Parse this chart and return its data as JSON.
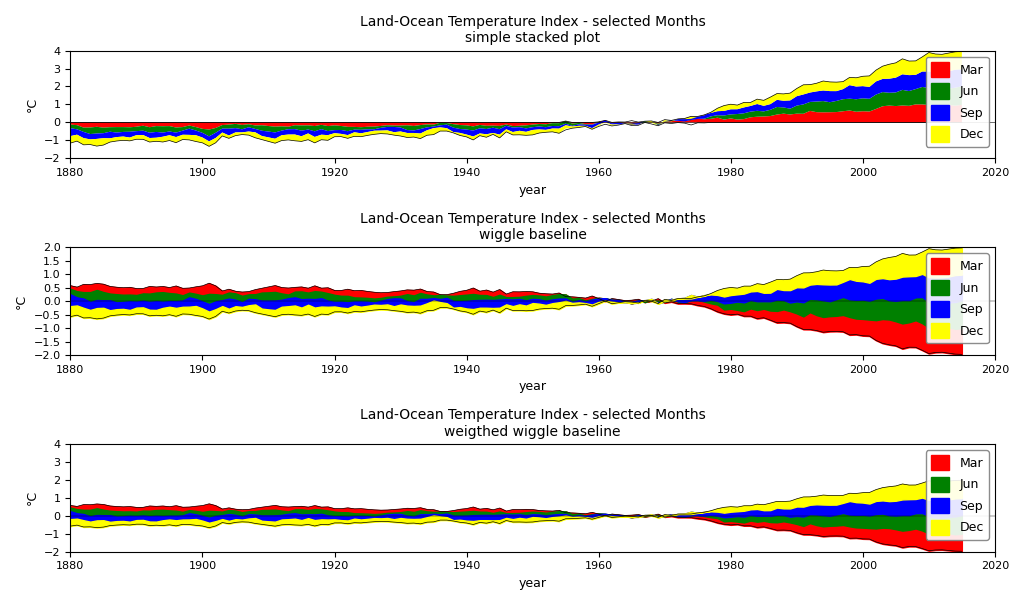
{
  "title1": "Land-Ocean Temperature Index - selected Months",
  "subtitle1": "simple stacked plot",
  "title2": "Land-Ocean Temperature Index - selected Months",
  "subtitle2": "wiggle baseline",
  "title3": "Land-Ocean Temperature Index - selected Months",
  "subtitle3": "weigthed wiggle baseline",
  "xlabel": "year",
  "ylabel": "°C",
  "xlim": [
    1880,
    2020
  ],
  "ylim1": [
    -2,
    4
  ],
  "ylim2": [
    -2.0,
    2.0
  ],
  "ylim3": [
    -2,
    4
  ],
  "yticks1": [
    -2,
    -1,
    0,
    1,
    2,
    3,
    4
  ],
  "yticks2": [
    -2.0,
    -1.5,
    -1.0,
    -0.5,
    0.0,
    0.5,
    1.0,
    1.5,
    2.0
  ],
  "yticks3": [
    -2,
    -1,
    0,
    1,
    2,
    3,
    4
  ],
  "colors": {
    "Mar": "#ff0000",
    "Jun": "#008000",
    "Sep": "#0000ff",
    "Dec": "#ffff00"
  },
  "legend_labels": [
    "Mar",
    "Jun",
    "Sep",
    "Dec"
  ],
  "background_color": "#ffffff",
  "figsize": [
    10.24,
    6.05
  ],
  "dpi": 100
}
